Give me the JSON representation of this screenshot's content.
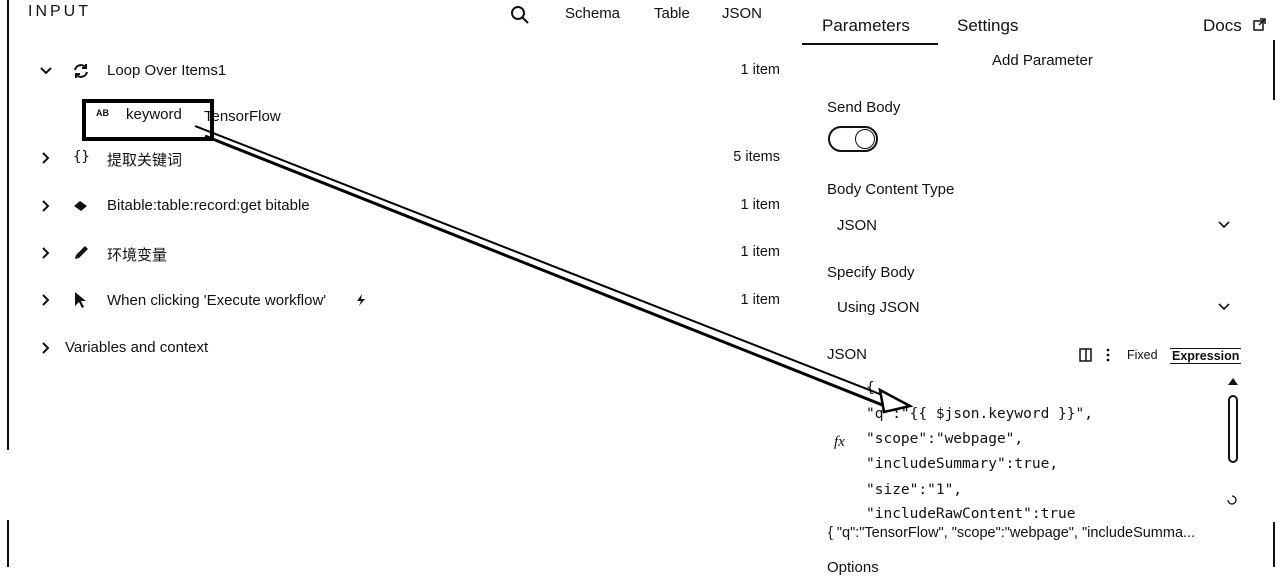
{
  "input_panel": {
    "title": "INPUT",
    "tabs": [
      "Schema",
      "Table",
      "JSON"
    ],
    "rows": [
      {
        "label": "Loop Over Items1",
        "count": "1 item"
      },
      {
        "label": "提取关键词",
        "count": "5 items"
      },
      {
        "label": "Bitable:table:record:get bitable",
        "count": "1 item"
      },
      {
        "label": "环境变量",
        "count": "1 item"
      },
      {
        "label": "When clicking 'Execute workflow'",
        "count": "1 item"
      },
      {
        "label": "Variables and context"
      }
    ],
    "field": {
      "type": "AB",
      "name": "keyword",
      "value": "TensorFlow"
    }
  },
  "params_panel": {
    "tabs": [
      "Parameters",
      "Settings",
      "Docs"
    ],
    "add_parameter": "Add Parameter",
    "send_body": "Send Body",
    "body_content_type": {
      "label": "Body Content Type",
      "value": "JSON"
    },
    "specify_body": {
      "label": "Specify Body",
      "value": "Using JSON"
    },
    "json": {
      "label": "JSON",
      "modes": [
        "Fixed",
        "Expression"
      ],
      "fx": "fx",
      "code": [
        "{",
        "\"q\":\"{{ $json.keyword }}\",",
        "\"scope\":\"webpage\",",
        "\"includeSummary\":true,",
        "\"size\":\"1\",",
        "\"includeRawContent\":true"
      ],
      "result": "{ \"q\":\"TensorFlow\", \"scope\":\"webpage\", \"includeSumma..."
    },
    "options": "Options"
  }
}
